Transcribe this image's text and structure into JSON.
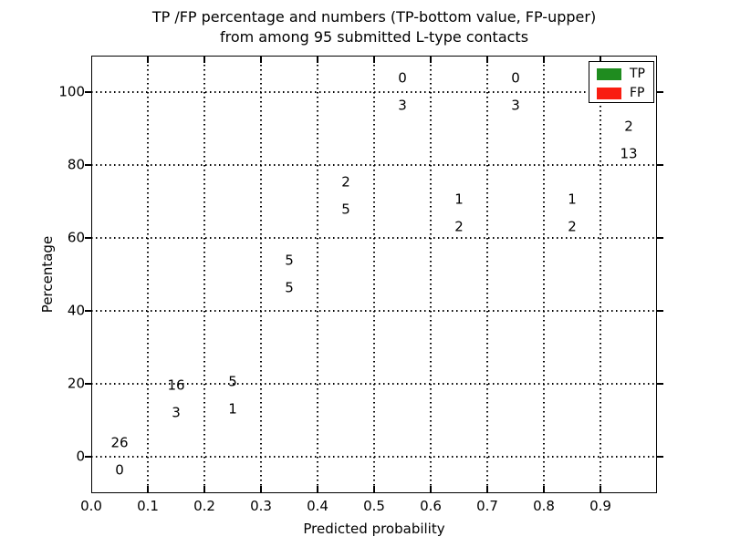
{
  "title": {
    "line1": "TP /FP percentage and numbers (TP-bottom value, FP-upper)",
    "line2": "from among 95 submitted L-type contacts"
  },
  "axes": {
    "ylabel": "Percentage",
    "xlabel": "Predicted probability",
    "yticks": [
      0,
      20,
      40,
      60,
      80,
      100
    ],
    "xtick_labels": [
      "0.0",
      "0.1",
      "0.2",
      "0.3",
      "0.4",
      "0.5",
      "0.6",
      "0.7",
      "0.8",
      "0.9"
    ],
    "xlim": [
      0.0,
      1.0
    ],
    "ylim": [
      -10,
      110
    ],
    "grid": "dotted"
  },
  "legend": {
    "position": "upper-right",
    "items": [
      {
        "label": "TP",
        "color": "#1f8c1f"
      },
      {
        "label": "FP",
        "color": "#f91d11"
      }
    ]
  },
  "colors": {
    "tp": "#1f8c1f",
    "fp": "#f91d11",
    "bar_edge": "#ffffff",
    "grid": "#000000"
  },
  "chart_data": {
    "type": "bar",
    "stacked": true,
    "normalized_to_percent": true,
    "title": "TP /FP percentage and numbers (TP-bottom value, FP-upper) from among 95 submitted L-type contacts",
    "xlabel": "Predicted probability",
    "ylabel": "Percentage",
    "total_submitted": 95,
    "bin_width": 0.1,
    "bin_start": [
      0.0,
      0.1,
      0.2,
      0.3,
      0.4,
      0.5,
      0.6,
      0.7,
      0.8,
      0.9
    ],
    "categories": [
      "0.0-0.1",
      "0.1-0.2",
      "0.2-0.3",
      "0.3-0.4",
      "0.4-0.5",
      "0.5-0.6",
      "0.6-0.7",
      "0.7-0.8",
      "0.8-0.9",
      "0.9-1.0"
    ],
    "series": [
      {
        "name": "TP",
        "counts": [
          0,
          3,
          1,
          5,
          5,
          3,
          2,
          3,
          2,
          13
        ]
      },
      {
        "name": "FP",
        "counts": [
          26,
          16,
          5,
          5,
          2,
          0,
          1,
          0,
          1,
          2
        ]
      }
    ],
    "tp_percent": [
      0.0,
      15.8,
      16.7,
      50.0,
      71.4,
      100.0,
      66.7,
      100.0,
      66.7,
      86.7
    ],
    "fp_percent": [
      100.0,
      84.2,
      83.3,
      50.0,
      28.6,
      0.0,
      33.3,
      0.0,
      33.3,
      13.3
    ]
  }
}
